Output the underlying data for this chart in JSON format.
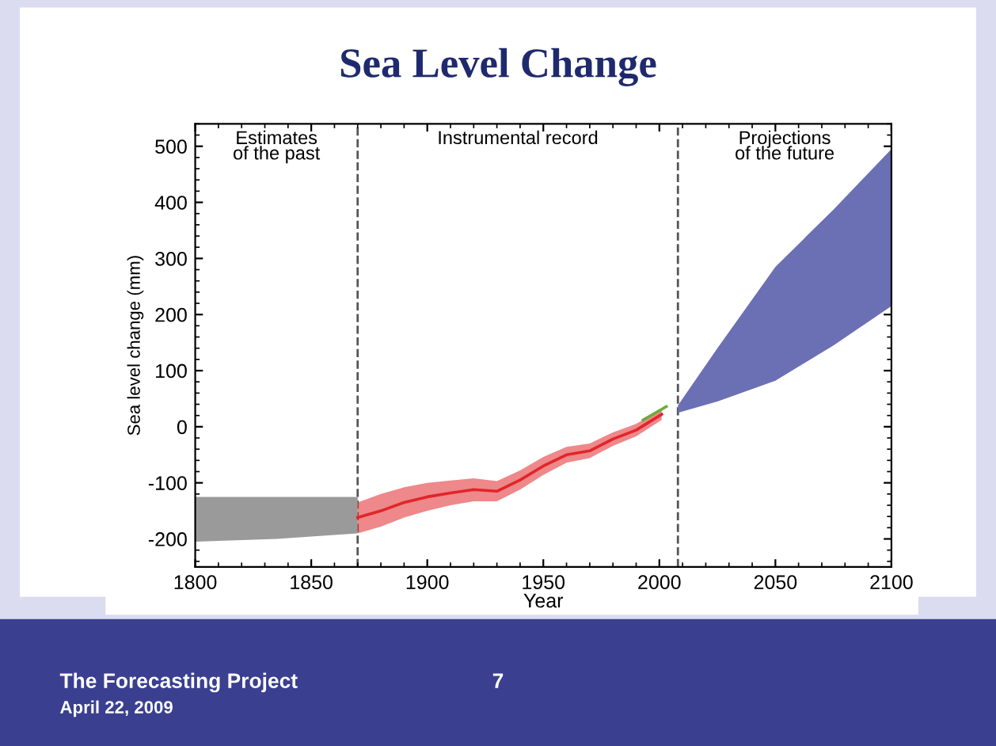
{
  "chart_data": {
    "type": "line",
    "title": "Sea Level Change",
    "xlabel": "Year",
    "ylabel": "Sea level change (mm)",
    "xlim": [
      1800,
      2100
    ],
    "ylim": [
      -250,
      540
    ],
    "xticks": [
      1800,
      1850,
      1900,
      1950,
      2000,
      2050,
      2100
    ],
    "yticks": [
      -200,
      -100,
      0,
      100,
      200,
      300,
      400,
      500
    ],
    "grid": false,
    "legend": false,
    "series": [
      {
        "color": "#9a9a9a",
        "x": [
          1800,
          1835,
          1870
        ],
        "values": [
          null,
          null,
          null
        ],
        "lower": [
          -205,
          -200,
          -190
        ],
        "upper": [
          -125,
          -125,
          -125
        ]
      },
      {
        "color": "#e0262a",
        "x": [
          1870,
          1880,
          1890,
          1900,
          1910,
          1920,
          1930,
          1940,
          1950,
          1960,
          1970,
          1980,
          1990,
          2001
        ],
        "values": [
          -162,
          -150,
          -135,
          -125,
          -118,
          -112,
          -115,
          -95,
          -70,
          -50,
          -43,
          -22,
          -6,
          22
        ],
        "lower": [
          -190,
          -178,
          -162,
          -150,
          -140,
          -133,
          -133,
          -112,
          -86,
          -64,
          -56,
          -34,
          -17,
          12
        ],
        "upper": [
          -135,
          -120,
          -108,
          -100,
          -96,
          -92,
          -97,
          -78,
          -54,
          -36,
          -30,
          -10,
          5,
          32
        ]
      },
      {
        "color": "#6bab3c",
        "x": [
          1993,
          2003
        ],
        "values": [
          12,
          36
        ]
      },
      {
        "color": "#6b70b5",
        "x": [
          2008,
          2025,
          2050,
          2075,
          2100
        ],
        "values": [
          null,
          null,
          null,
          null,
          null
        ],
        "lower": [
          25,
          45,
          82,
          145,
          215
        ],
        "upper": [
          38,
          140,
          285,
          387,
          495
        ]
      }
    ],
    "ref_lines": [
      {
        "axis": "x",
        "value": 1870,
        "line_style": "dashed",
        "color": "#555555"
      },
      {
        "axis": "x",
        "value": 2008,
        "line_style": "dashed",
        "color": "#555555"
      }
    ],
    "annotations": [
      "Estimates\nof the past",
      "Instrumental record",
      "Projections\nof the future",
      "The Forecasting Project",
      "April 22, 2009",
      "7"
    ]
  }
}
